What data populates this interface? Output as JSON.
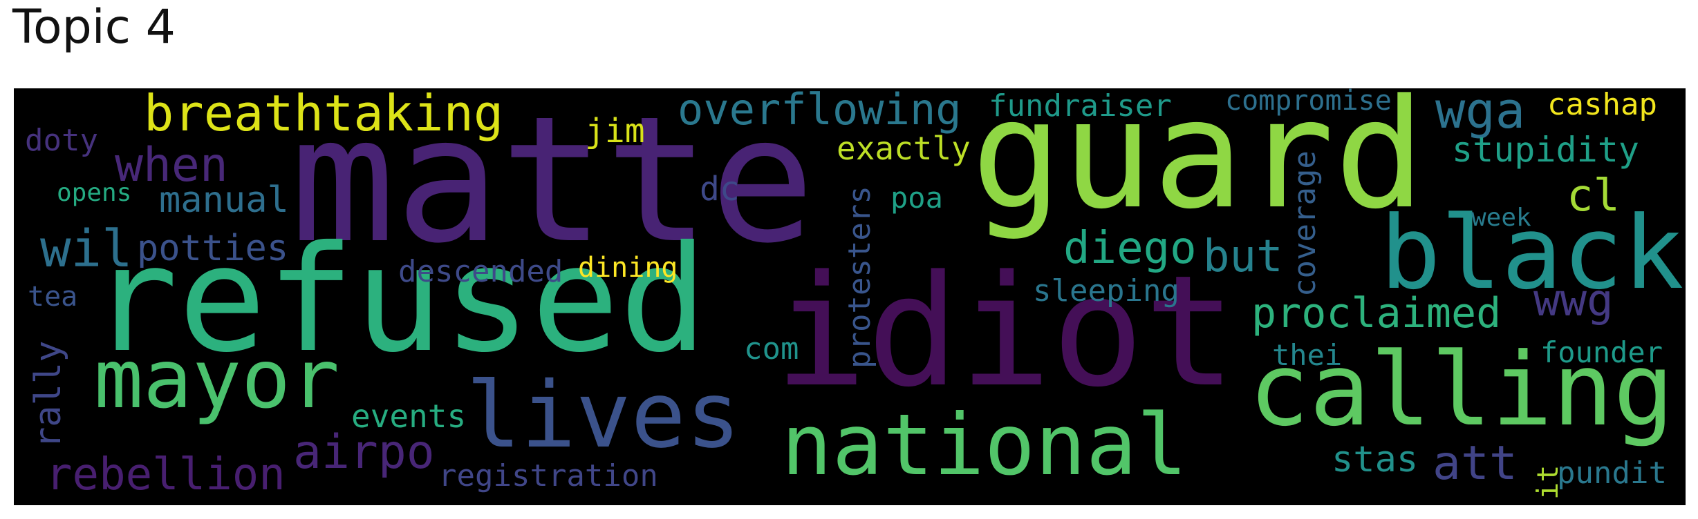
{
  "title": "Topic 4",
  "words": {
    "matte": {
      "text": "matte",
      "color": "#482374"
    },
    "guard": {
      "text": "guard",
      "color": "#8fd744"
    },
    "idiot": {
      "text": "idiot",
      "color": "#440f57"
    },
    "refused": {
      "text": "refused",
      "color": "#2cb17e"
    },
    "black": {
      "text": "black",
      "color": "#21918c"
    },
    "calling": {
      "text": "calling",
      "color": "#5ec962"
    },
    "mayor": {
      "text": "mayor",
      "color": "#4ac16d"
    },
    "lives": {
      "text": "lives",
      "color": "#3b528b"
    },
    "national": {
      "text": "national",
      "color": "#52c569"
    },
    "breathtaking": {
      "text": "breathtaking",
      "color": "#dde318"
    },
    "overflowing": {
      "text": "overflowing",
      "color": "#2a788e"
    },
    "wga": {
      "text": "wga",
      "color": "#2c728e"
    },
    "cashap": {
      "text": "cashap",
      "color": "#f1e51d"
    },
    "fundraiser": {
      "text": "fundraiser",
      "color": "#1f9a8a"
    },
    "compromise": {
      "text": "compromise",
      "color": "#2d708e"
    },
    "doty": {
      "text": "doty",
      "color": "#46327e"
    },
    "jim": {
      "text": "jim",
      "color": "#d8e219"
    },
    "when": {
      "text": "when",
      "color": "#482878"
    },
    "exactly": {
      "text": "exactly",
      "color": "#bddf26"
    },
    "stupidity": {
      "text": "stupidity",
      "color": "#1fa088"
    },
    "opens": {
      "text": "opens",
      "color": "#25ab82"
    },
    "manual": {
      "text": "manual",
      "color": "#2e6f8e"
    },
    "dc": {
      "text": "dc",
      "color": "#3e4989"
    },
    "coverage": {
      "text": "coverage",
      "color": "#355f8d"
    },
    "poa": {
      "text": "poa",
      "color": "#1fa187"
    },
    "cl": {
      "text": "cl",
      "color": "#a5db36"
    },
    "week": {
      "text": "week",
      "color": "#287c8e"
    },
    "wil": {
      "text": "wil",
      "color": "#2d708e"
    },
    "potties": {
      "text": "potties",
      "color": "#3b528b"
    },
    "diego": {
      "text": "diego",
      "color": "#22a884"
    },
    "but": {
      "text": "but",
      "color": "#26828e"
    },
    "protesters": {
      "text": "protesters",
      "color": "#39558c"
    },
    "descended": {
      "text": "descended",
      "color": "#3e4a89"
    },
    "dining": {
      "text": "dining",
      "color": "#fde725"
    },
    "sleeping": {
      "text": "sleeping",
      "color": "#2a768e"
    },
    "tea": {
      "text": "tea",
      "color": "#3a548c"
    },
    "proclaimed": {
      "text": "proclaimed",
      "color": "#2db27d"
    },
    "wwg": {
      "text": "wwg",
      "color": "#443983"
    },
    "rally": {
      "text": "rally",
      "color": "#3f4788"
    },
    "com": {
      "text": "com",
      "color": "#20938c"
    },
    "thei": {
      "text": "thei",
      "color": "#24878e"
    },
    "founder": {
      "text": "founder",
      "color": "#1e9b8a"
    },
    "events": {
      "text": "events",
      "color": "#27ad81"
    },
    "airpo": {
      "text": "airpo",
      "color": "#482677"
    },
    "rebellion": {
      "text": "rebellion",
      "color": "#481f70"
    },
    "registration": {
      "text": "registration",
      "color": "#404688"
    },
    "stas": {
      "text": "stas",
      "color": "#21918c"
    },
    "att": {
      "text": "att",
      "color": "#414487"
    },
    "it": {
      "text": "it",
      "color": "#addc30"
    },
    "pundit": {
      "text": "pundit",
      "color": "#2a788e"
    }
  }
}
